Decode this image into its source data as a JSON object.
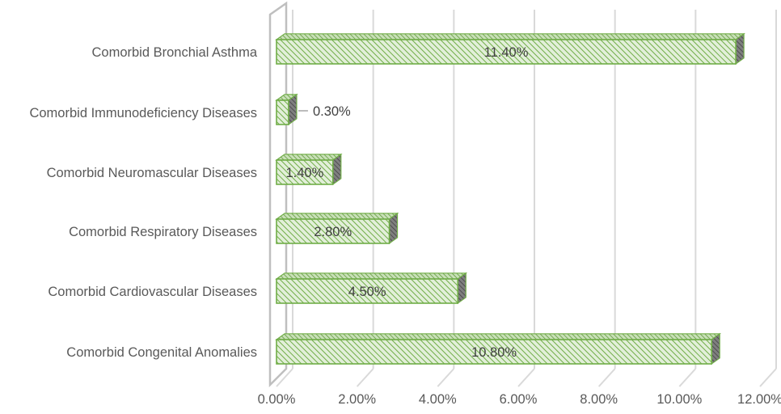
{
  "chart_data": {
    "type": "bar",
    "orientation": "horizontal",
    "style": "3d-clustered",
    "categories": [
      "Comorbid Bronchial Asthma",
      "Comorbid Immunodeficiency Diseases",
      "Comorbid Neuromascular Diseases",
      "Comorbid Respiratory Diseases",
      "Comorbid Cardiovascular Diseases",
      "Comorbid Congenital Anomalies"
    ],
    "values": [
      11.4,
      0.3,
      1.4,
      2.8,
      4.5,
      10.8
    ],
    "data_labels": [
      "11.40%",
      "0.30%",
      "1.40%",
      "2.80%",
      "4.50%",
      "10.80%"
    ],
    "x_ticks": [
      "0.00%",
      "2.00%",
      "4.00%",
      "6.00%",
      "8.00%",
      "10.00%",
      "12.00%"
    ],
    "xlim": [
      0,
      12
    ],
    "title": "",
    "xlabel": "",
    "ylabel": "",
    "grid": "vertical",
    "legend": "none",
    "colors": {
      "bar_fill": "#e2efd9",
      "bar_hatch": "#70ad47",
      "bar_outline": "#70ad47",
      "bar_side": "#5a5a5a",
      "gridline": "#d9d9d9",
      "wall": "#bfbfbf",
      "text": "#595959"
    }
  }
}
